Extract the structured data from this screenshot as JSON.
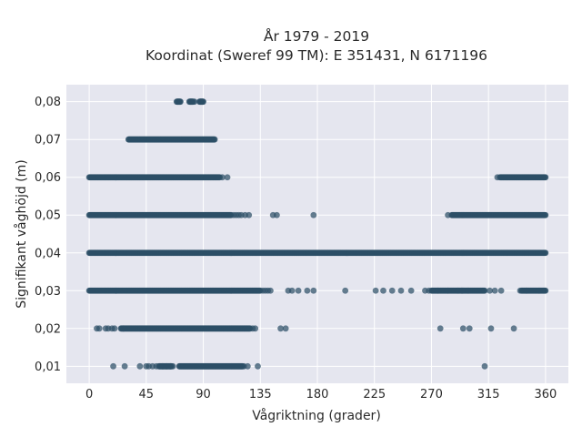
{
  "chart_data": {
    "type": "scatter",
    "title": "År 1979 - 2019",
    "subtitle": "Koordinat (Sweref 99 TM): E 351431, N 6171196",
    "xlabel": "Vågriktning (grader)",
    "ylabel": "Signifikant våghöjd (m)",
    "xlim": [
      -18,
      378
    ],
    "ylim": [
      0.0055,
      0.0845
    ],
    "x_ticks": [
      0,
      45,
      90,
      135,
      180,
      225,
      270,
      315,
      360
    ],
    "x_tick_labels": [
      "0",
      "45",
      "90",
      "135",
      "180",
      "225",
      "270",
      "315",
      "360"
    ],
    "y_ticks": [
      0.01,
      0.02,
      0.03,
      0.04,
      0.05,
      0.06,
      0.07,
      0.08
    ],
    "y_tick_labels": [
      "0,01",
      "0,02",
      "0,03",
      "0,04",
      "0,05",
      "0,06",
      "0,07",
      "0,08"
    ],
    "grid": true,
    "background": "#e5e6ef",
    "grid_color": "#ffffff",
    "point_color": "#2d4f67",
    "series": [
      {
        "y": 0.08,
        "clusters": [
          [
            69,
            72
          ],
          [
            79,
            82
          ],
          [
            87,
            90
          ]
        ],
        "points": [
          70,
          71,
          80,
          81,
          83,
          88,
          89
        ]
      },
      {
        "y": 0.07,
        "clusters": [
          [
            31,
            99
          ]
        ],
        "points": []
      },
      {
        "y": 0.06,
        "clusters": [
          [
            0,
            103
          ],
          [
            324,
            360
          ]
        ],
        "points": [
          105,
          109,
          322
        ]
      },
      {
        "y": 0.05,
        "clusters": [
          [
            0,
            112
          ],
          [
            286,
            360
          ]
        ],
        "points": [
          114,
          116,
          118,
          120,
          123,
          126,
          145,
          148,
          177,
          283
        ]
      },
      {
        "y": 0.04,
        "clusters": [
          [
            0,
            360
          ]
        ],
        "points": []
      },
      {
        "y": 0.03,
        "clusters": [
          [
            0,
            135
          ],
          [
            270,
            312
          ],
          [
            341,
            360
          ]
        ],
        "points": [
          137,
          139,
          141,
          143,
          157,
          160,
          165,
          172,
          177,
          202,
          226,
          232,
          239,
          246,
          254,
          265,
          268,
          275,
          283,
          291,
          294,
          299,
          316,
          320,
          325,
          340,
          345,
          355
        ]
      },
      {
        "y": 0.02,
        "clusters": [
          [
            25,
            127
          ]
        ],
        "points": [
          6,
          8,
          13,
          15,
          18,
          20,
          27,
          129,
          131,
          151,
          155,
          277,
          295,
          300,
          317,
          335
        ]
      },
      {
        "y": 0.01,
        "clusters": [
          [
            55,
            65
          ],
          [
            71,
            121
          ]
        ],
        "points": [
          19,
          28,
          40,
          45,
          47,
          50,
          53,
          58,
          61,
          64,
          66,
          122,
          125,
          133,
          312
        ]
      }
    ]
  }
}
